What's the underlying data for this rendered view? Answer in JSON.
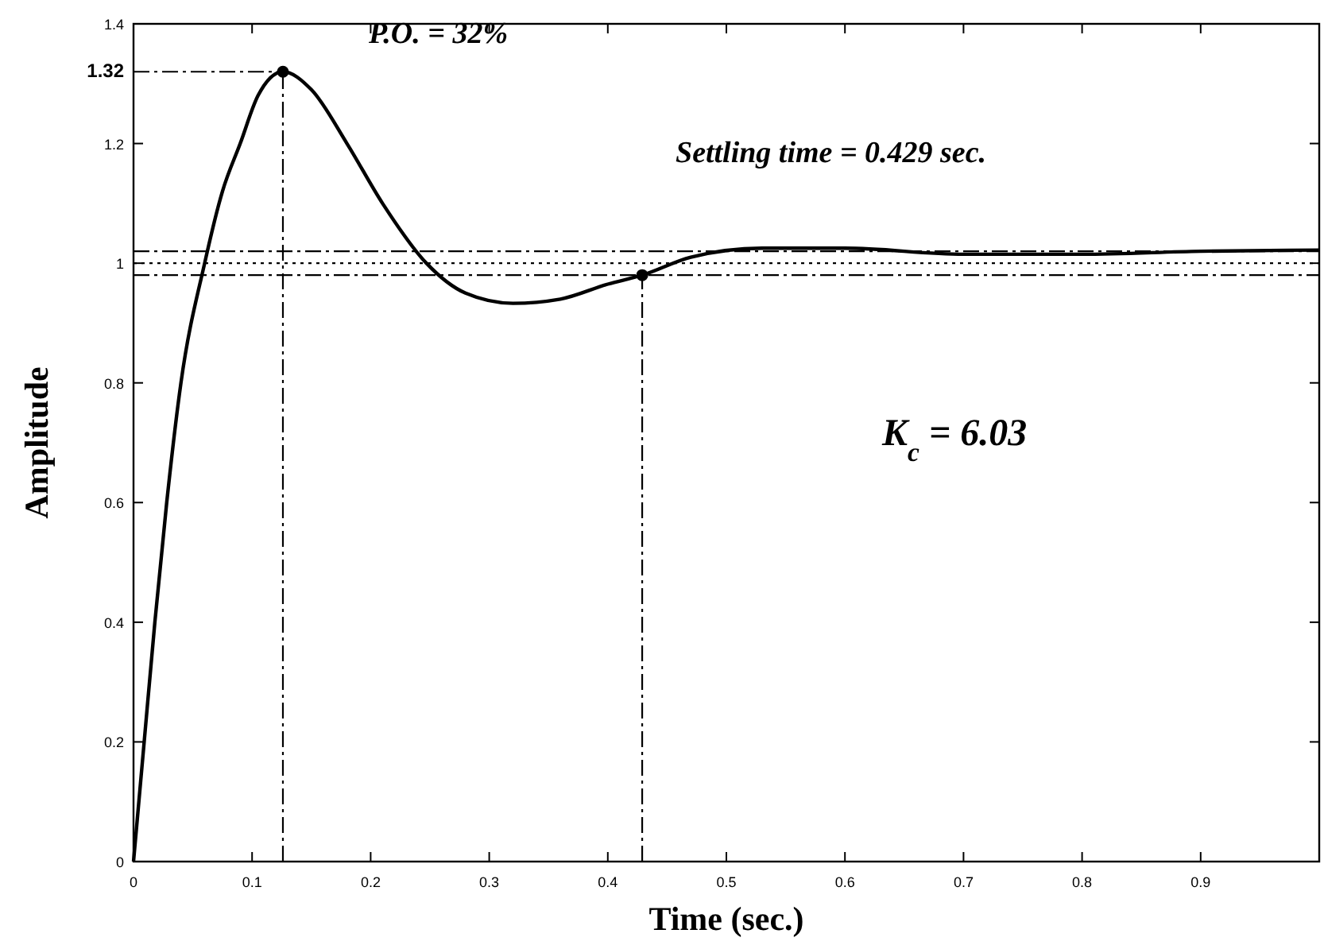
{
  "chart_data": {
    "type": "line",
    "xlabel": "Time (sec.)",
    "ylabel": "Amplitude",
    "xlim": [
      0,
      1
    ],
    "ylim": [
      0,
      1.4
    ],
    "xticks": [
      0,
      0.1,
      0.2,
      0.3,
      0.4,
      0.5,
      0.6,
      0.7,
      0.8,
      0.9
    ],
    "yticks": [
      0,
      0.2,
      0.4,
      0.6,
      0.8,
      1,
      1.2,
      {
        "value": 1.32,
        "label": "1.32"
      },
      1.4
    ],
    "grid": false,
    "series": [
      {
        "type": "line",
        "color": "#000000",
        "marker": "none",
        "x": [
          0,
          0.009,
          0.018,
          0.028,
          0.04,
          0.06,
          0.075,
          0.09,
          0.105,
          0.126,
          0.15,
          0.18,
          0.21,
          0.247,
          0.28,
          0.32,
          0.36,
          0.4,
          0.429,
          0.47,
          0.53,
          0.6,
          0.7,
          0.8,
          0.9,
          1.0
        ],
        "values": [
          0,
          0.2,
          0.4,
          0.6,
          0.8,
          1.0,
          1.12,
          1.2,
          1.28,
          1.32,
          1.29,
          1.2,
          1.1,
          1.0,
          0.95,
          0.933,
          0.94,
          0.965,
          0.98,
          1.01,
          1.025,
          1.025,
          1.015,
          1.015,
          1.02,
          1.022
        ]
      },
      {
        "type": "scatter",
        "color": "#000000",
        "marker": "circle",
        "x": [
          0.126,
          0.429
        ],
        "values": [
          1.32,
          0.98
        ]
      }
    ],
    "ref_lines": [
      {
        "axis": "y",
        "value": 1.02,
        "line_style": "dashed",
        "color": "#000000"
      },
      {
        "axis": "y",
        "value": 1.0,
        "line_style": "dotted",
        "color": "#000000"
      },
      {
        "axis": "y",
        "value": 0.98,
        "line_style": "dashed",
        "color": "#000000"
      },
      {
        "axis": "x",
        "value": 0.126,
        "line_style": "dashed",
        "color": "#000000"
      },
      {
        "axis": "x",
        "value": 0.429,
        "line_style": "dashed",
        "color": "#000000"
      },
      {
        "axis": "y",
        "value": 1.32,
        "line_style": "dashed",
        "color": "#000000"
      }
    ],
    "annotations": [
      "P.O. = 32%",
      "Settling time = 0.429 sec.",
      "K$_{c}$ = 6.03"
    ]
  }
}
